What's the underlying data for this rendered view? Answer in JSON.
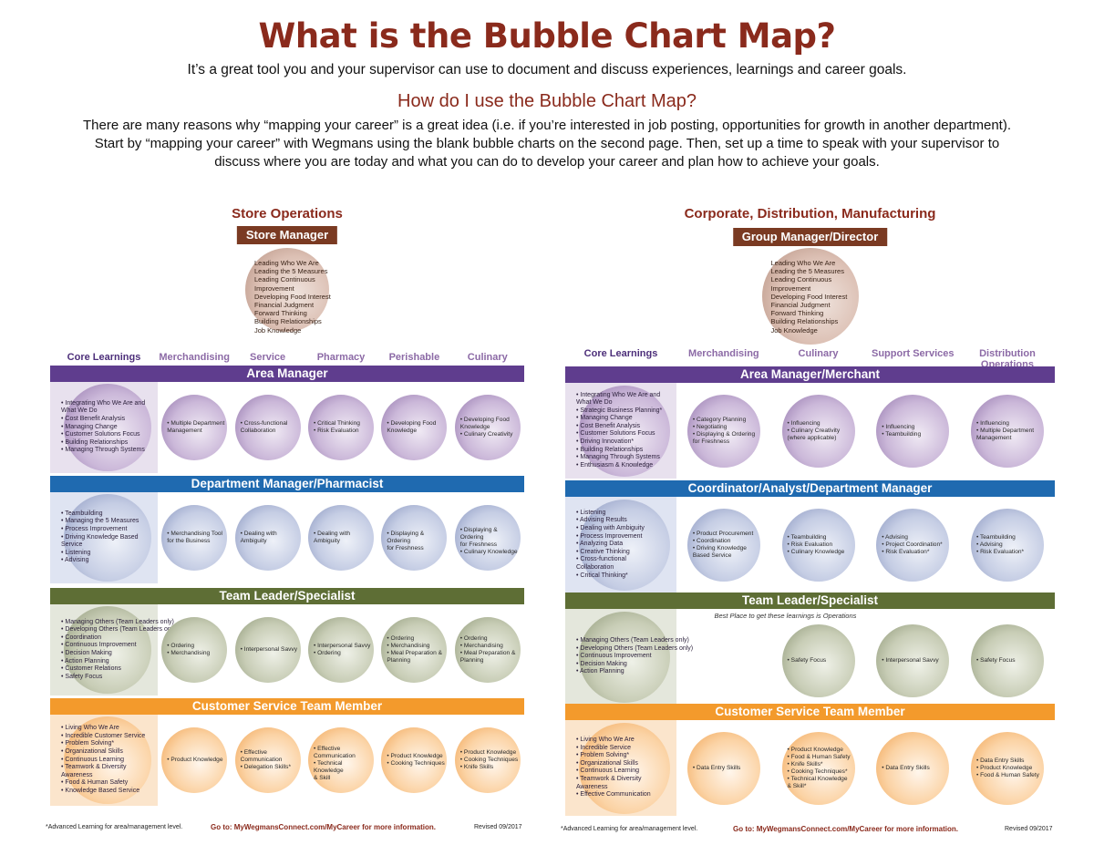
{
  "header": {
    "title": "What is the Bubble Chart Map?",
    "subtitle": "It’s a great tool you and your supervisor can use to document and discuss experiences, learnings and career goals.",
    "how_title": "How do I use the Bubble Chart Map?",
    "intro_line1": "There are many reasons why “mapping your career” is a great idea (i.e. if you’re interested in job posting, opportunities for growth in another department).",
    "intro_line2": "Start by “mapping your career” with Wegmans using the blank bubble charts on the second page. Then, set up a time to speak with your supervisor to",
    "intro_line3": "discuss where you are today and what you can do to develop your career and plan how to achieve your goals."
  },
  "left": {
    "section_title": "Store Operations",
    "top_role": "Store Manager",
    "top_items": [
      "Leading Who We Are",
      "Leading the 5 Measures",
      "Leading Continuous",
      "Improvement",
      "Developing Food Interest",
      "Financial Judgment",
      "Forward Thinking",
      "Building Relationships",
      "Job Knowledge"
    ],
    "columns": [
      "Core Learnings",
      "Merchandising",
      "Service",
      "Pharmacy",
      "Perishable",
      "Culinary"
    ],
    "bands": [
      {
        "title": "Area Manager",
        "core": [
          "• Integrating Who We Are and",
          "What We Do",
          "• Cost Benefit Analysis",
          "• Managing Change",
          "• Customer Solutions Focus",
          "• Building Relationships",
          "• Managing Through Systems"
        ],
        "cells": [
          [
            "• Multiple Department",
            "Management"
          ],
          [
            "• Cross-functional",
            "Collaboration"
          ],
          [
            "• Critical Thinking",
            "• Risk Evaluation"
          ],
          [
            "• Developing Food",
            "Knowledge"
          ],
          [
            "• Developing Food",
            "Knowledge",
            "• Culinary Creativity"
          ]
        ]
      },
      {
        "title": "Department Manager/Pharmacist",
        "core": [
          "• Teambuilding",
          "• Managing the 5 Measures",
          "• Process Improvement",
          "• Driving Knowledge Based",
          "Service",
          "• Listening",
          "• Advising"
        ],
        "cells": [
          [
            "• Merchandising Tool",
            "for the Business"
          ],
          [
            "• Dealing with",
            "Ambiguity"
          ],
          [
            "• Dealing with",
            "Ambiguity"
          ],
          [
            "• Displaying & Ordering",
            "for Freshness"
          ],
          [
            "• Displaying & Ordering",
            "for Freshness",
            "• Culinary Knowledge"
          ]
        ]
      },
      {
        "title": "Team Leader/Specialist",
        "core": [
          "• Managing Others (Team Leaders only)",
          "• Developing Others (Team Leaders only)",
          "• Coordination",
          "• Continuous Improvement",
          "• Decision Making",
          "• Action Planning",
          "• Customer Relations",
          "• Safety Focus"
        ],
        "cells": [
          [
            "• Ordering",
            "• Merchandising"
          ],
          [
            "• Interpersonal Savvy"
          ],
          [
            "• Interpersonal Savvy",
            "• Ordering"
          ],
          [
            "• Ordering",
            "• Merchandising",
            "• Meal Preparation &",
            "Planning"
          ],
          [
            "• Ordering",
            "• Merchandising",
            "• Meal Preparation &",
            "Planning"
          ]
        ]
      },
      {
        "title": "Customer Service Team Member",
        "core": [
          "• Living Who We Are",
          "• Incredible Customer Service",
          "• Problem Solving*",
          "• Organizational Skills",
          "• Continuous Learning",
          "• Teamwork & Diversity",
          "Awareness",
          "• Food & Human Safety",
          "• Knowledge Based Service"
        ],
        "cells": [
          [
            "• Product Knowledge"
          ],
          [
            "• Effective",
            "Communication",
            "• Delegation Skills*"
          ],
          [
            "• Effective",
            "Communication",
            "• Technical Knowledge",
            "& Skill"
          ],
          [
            "• Product Knowledge",
            "• Cooking Techniques"
          ],
          [
            "• Product Knowledge",
            "• Cooking Techniques",
            "• Knife Skills"
          ]
        ]
      }
    ],
    "footnote": "*Advanced Learning for area/management level.",
    "goto": "Go to: MyWegmansConnect.com/MyCareer for more information.",
    "revised": "Revised 09/2017"
  },
  "right": {
    "section_title": "Corporate, Distribution, Manufacturing",
    "top_role": "Group Manager/Director",
    "top_items": [
      "Leading Who We Are",
      "Leading the 5 Measures",
      "Leading Continuous",
      "Improvement",
      "Developing Food Interest",
      "Financial Judgment",
      "Forward Thinking",
      "Building Relationships",
      "Job Knowledge"
    ],
    "columns": [
      "Core Learnings",
      "Merchandising",
      "Culinary",
      "Support Services",
      "Distribution Operations"
    ],
    "bands": [
      {
        "title": "Area Manager/Merchant",
        "core": [
          "• Integrating Who We Are and",
          "What We Do",
          "• Strategic Business Planning*",
          "• Managing Change",
          "• Cost Benefit Analysis",
          "• Customer Solutions Focus",
          "• Driving Innovation*",
          "• Building Relationships",
          "• Managing Through Systems",
          "• Enthusiasm & Knowledge"
        ],
        "cells": [
          [
            "• Category Planning",
            "• Negotiating",
            "• Displaying & Ordering",
            "for Freshness"
          ],
          [
            "• Influencing",
            "• Culinary Creativity",
            "(where applicable)"
          ],
          [
            "• Influencing",
            "• Teambuilding"
          ],
          [
            "• Influencing",
            "• Multiple Department",
            "Management"
          ]
        ]
      },
      {
        "title": "Coordinator/Analyst/Department Manager",
        "core": [
          "• Listening",
          "• Advising Results",
          "• Dealing with Ambiguity",
          "• Process Improvement",
          "• Analyzing Data",
          "• Creative Thinking",
          "• Cross-functional",
          "Collaboration",
          "• Critical Thinking*"
        ],
        "cells": [
          [
            "• Product Procurement",
            "• Coordination",
            "• Driving Knowledge",
            "Based Service"
          ],
          [
            "• Teambuilding",
            "• Risk Evaluation",
            "• Culinary Knowledge"
          ],
          [
            "• Advising",
            "• Project Coordination*",
            "• Risk Evaluation*"
          ],
          [
            "• Teambuilding",
            "• Advising",
            "• Risk Evaluation*"
          ]
        ]
      },
      {
        "title": "Team Leader/Specialist",
        "note": "Best Place to get these learnings is Operations",
        "core": [
          "• Managing Others (Team Leaders only)",
          "• Developing Others (Team Leaders only)",
          "• Continuous Improvement",
          "• Decision Making",
          "• Action Planning"
        ],
        "cells": [
          [],
          [
            "• Safety Focus"
          ],
          [
            "• Interpersonal Savvy"
          ],
          [
            "• Safety Focus"
          ]
        ]
      },
      {
        "title": "Customer Service Team Member",
        "core": [
          "• Living Who We Are",
          "• Incredible Service",
          "• Problem Solving*",
          "• Organizational Skills",
          "• Continuous Learning",
          "• Teamwork & Diversity",
          "Awareness",
          "• Effective Communication"
        ],
        "cells": [
          [
            "• Data Entry Skills"
          ],
          [
            "• Product Knowledge",
            "• Food & Human Safety",
            "• Knife Skills*",
            "• Cooking Techniques*",
            "• Technical Knowledge",
            "& Skill*"
          ],
          [
            "• Data Entry Skills"
          ],
          [
            "• Data Entry Skills",
            "• Product Knowledge",
            "• Food & Human Safety"
          ]
        ]
      }
    ],
    "footnote": "*Advanced Learning for area/management level.",
    "goto": "Go to: MyWegmansConnect.com/MyCareer for more information.",
    "revised": "Revised 09/2017"
  },
  "colors": {
    "title": "#8a2a1c",
    "purple": "#5f3d8e",
    "blue": "#1f6ab0",
    "green": "#5e6e35",
    "orange": "#f39a2c",
    "badge": "#7a3a22"
  }
}
